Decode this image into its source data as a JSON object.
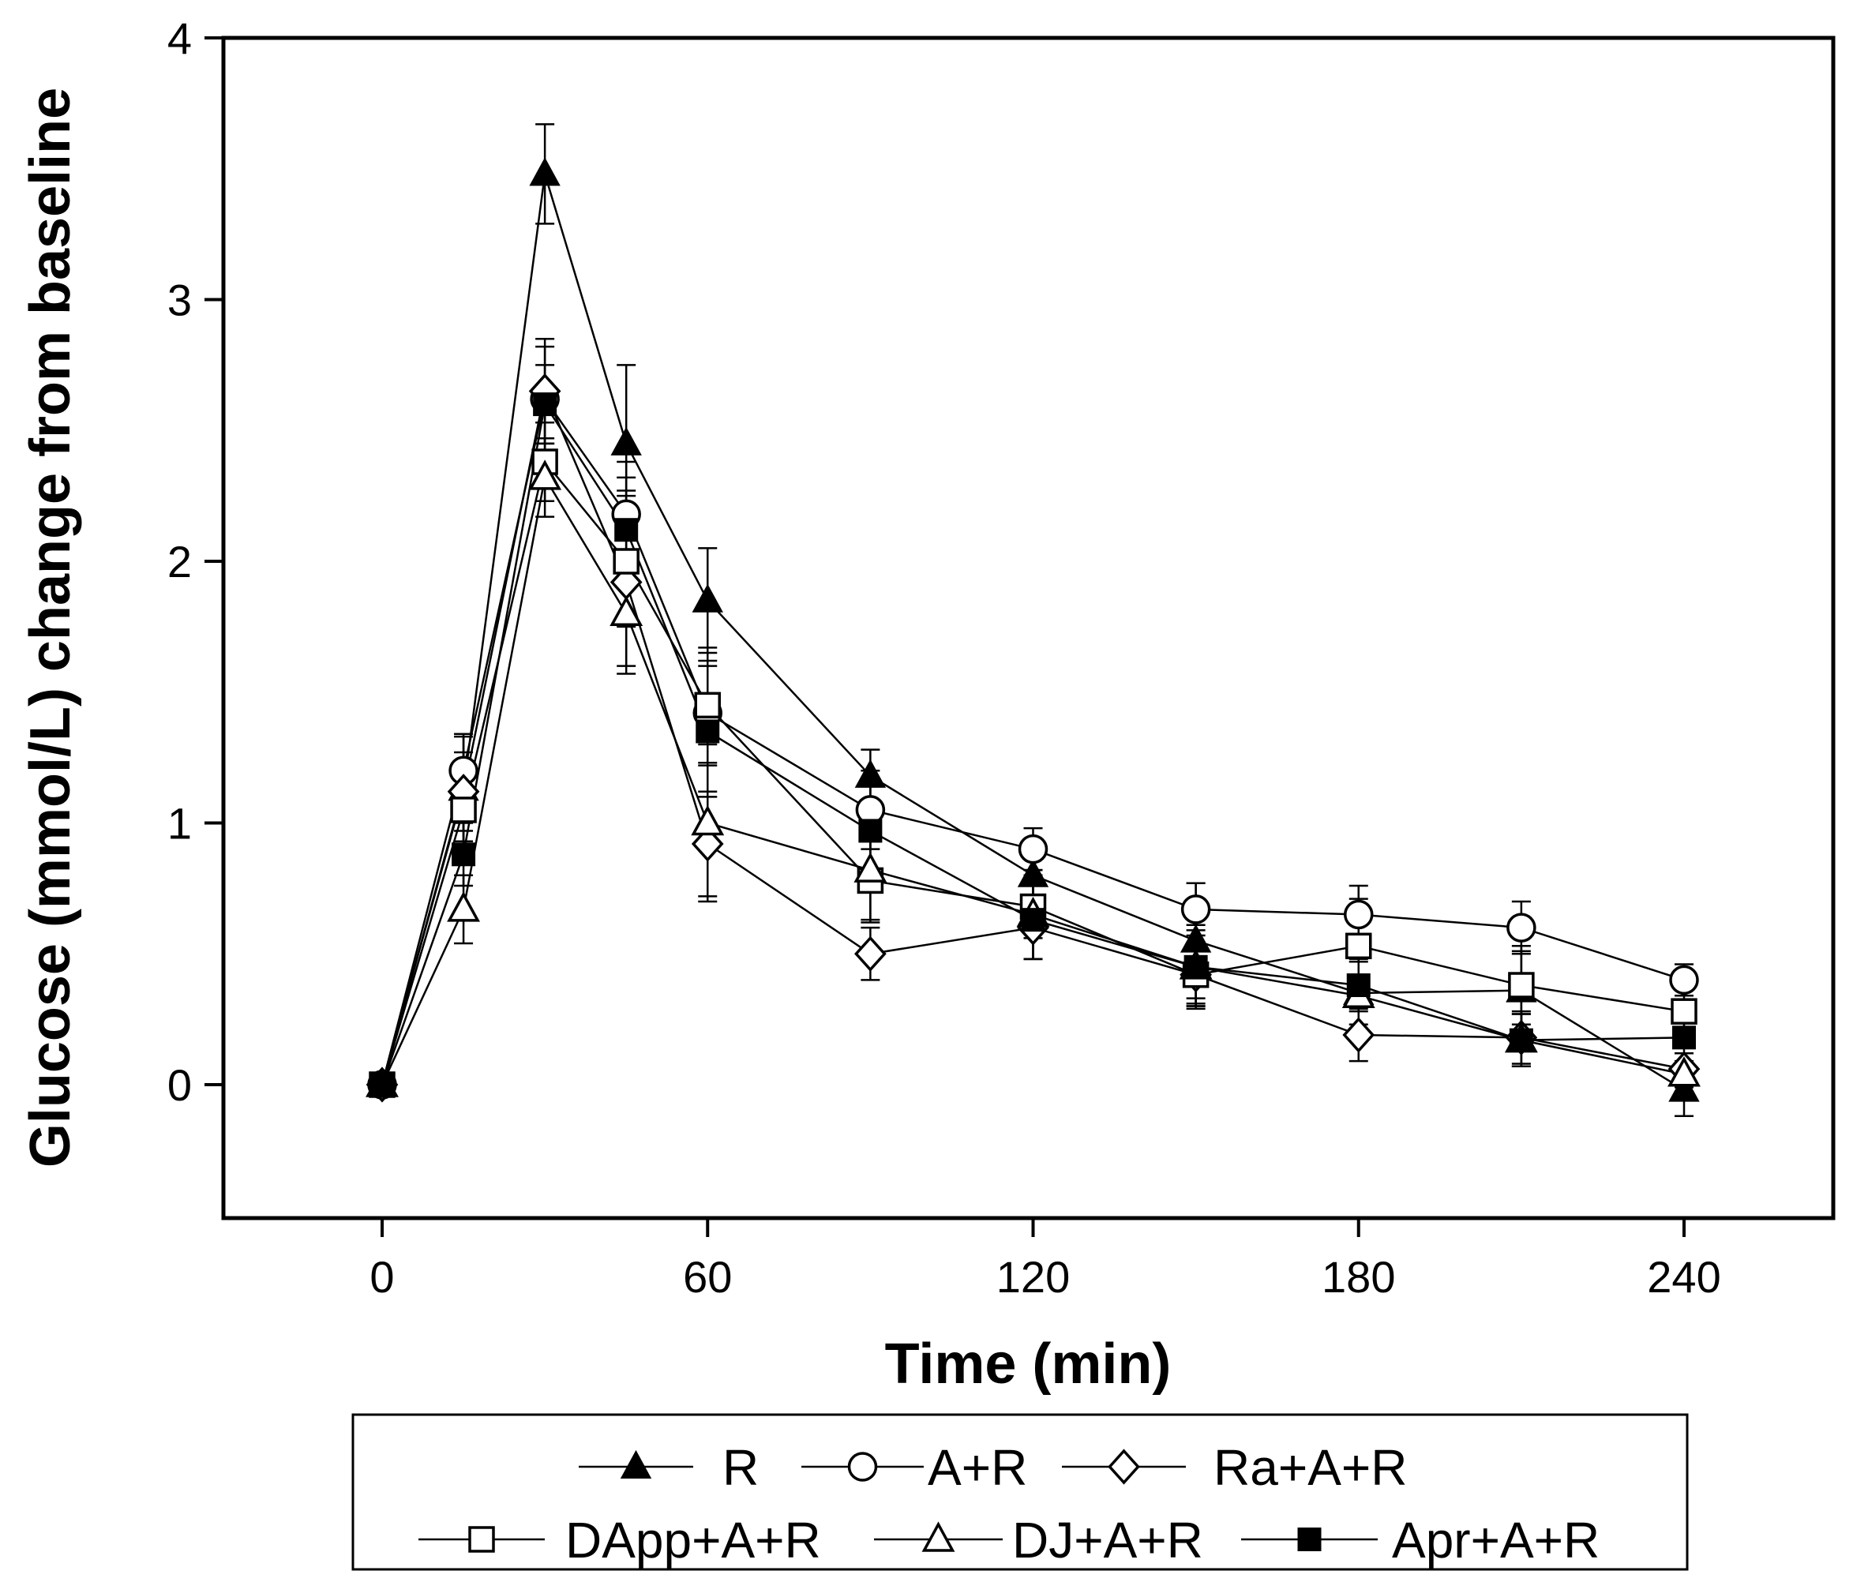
{
  "chart_data": {
    "type": "line",
    "title": "",
    "xlabel": "Time (min)",
    "ylabel": "Glucose (mmol/L) change from baseline",
    "xlim": [
      -30,
      270
    ],
    "ylim": [
      -0.5,
      4
    ],
    "xticks": [
      0,
      60,
      120,
      180,
      240
    ],
    "yticks": [
      0,
      1,
      2,
      3,
      4
    ],
    "x": [
      0,
      15,
      30,
      45,
      60,
      90,
      120,
      150,
      180,
      210,
      240
    ],
    "legend_position": "bottom",
    "series": [
      {
        "name": "R",
        "marker": "filled-triangle",
        "values": [
          0,
          1.13,
          3.48,
          2.45,
          1.85,
          1.18,
          0.8,
          0.55,
          0.35,
          0.36,
          -0.02
        ],
        "errors": [
          0,
          0.2,
          0.19,
          0.3,
          0.2,
          0.1,
          0.1,
          0.22,
          0.12,
          0.15,
          0.1
        ]
      },
      {
        "name": "A+R",
        "marker": "open-circle",
        "values": [
          0,
          1.2,
          2.62,
          2.18,
          1.42,
          1.05,
          0.9,
          0.67,
          0.65,
          0.6,
          0.4
        ],
        "errors": [
          0,
          0.14,
          0.2,
          0.2,
          0.2,
          0.15,
          0.08,
          0.1,
          0.11,
          0.1,
          0.06
        ]
      },
      {
        "name": "Ra+A+R",
        "marker": "open-diamond",
        "values": [
          0,
          1.12,
          2.65,
          1.92,
          0.92,
          0.5,
          0.6,
          0.42,
          0.19,
          0.18,
          0.06
        ],
        "errors": [
          0,
          0.15,
          0.2,
          0.35,
          0.2,
          0.1,
          0.12,
          0.12,
          0.1,
          0.1,
          0.06
        ]
      },
      {
        "name": "DApp+A+R",
        "marker": "open-square",
        "values": [
          0,
          1.05,
          2.38,
          2.0,
          1.45,
          0.78,
          0.68,
          0.42,
          0.53,
          0.38,
          0.28
        ],
        "errors": [
          0,
          0.15,
          0.15,
          0.25,
          0.22,
          0.15,
          0.12,
          0.12,
          0.18,
          0.15,
          0.08
        ]
      },
      {
        "name": "DJ+A+R",
        "marker": "open-triangle",
        "values": [
          0,
          0.67,
          2.32,
          1.8,
          1.0,
          0.82,
          0.65,
          0.45,
          0.34,
          0.17,
          0.04
        ],
        "errors": [
          0,
          0.13,
          0.15,
          0.2,
          0.3,
          0.2,
          0.17,
          0.16,
          0.15,
          0.1,
          0.05
        ]
      },
      {
        "name": "Apr+A+R",
        "marker": "filled-square",
        "values": [
          0,
          0.88,
          2.6,
          2.12,
          1.35,
          0.97,
          0.63,
          0.45,
          0.38,
          0.17,
          0.18
        ],
        "errors": [
          0,
          0.12,
          0.15,
          0.2,
          0.25,
          0.2,
          0.15,
          0.14,
          0.1,
          0.1,
          0.06
        ]
      }
    ]
  }
}
